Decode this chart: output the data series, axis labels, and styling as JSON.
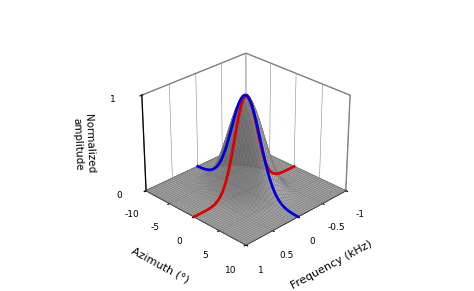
{
  "freq_range": [
    -1.0,
    1.0
  ],
  "az_range": [
    -10.0,
    10.0
  ],
  "freq_sigma": 0.22,
  "az_sigma": 2.8,
  "freq_n": 50,
  "az_n": 50,
  "xlabel": "Frequency (kHz)",
  "ylabel": "Azimuth (°)",
  "zlabel": "Normalized\namplitude",
  "surface_color": "#cccccc",
  "surface_edge_color": "#777777",
  "red_color": "#dd0000",
  "blue_color": "#0000dd",
  "background_color": "#ffffff",
  "elev": 28,
  "azim": -135,
  "line_lw": 2.0,
  "surface_alpha": 0.85
}
